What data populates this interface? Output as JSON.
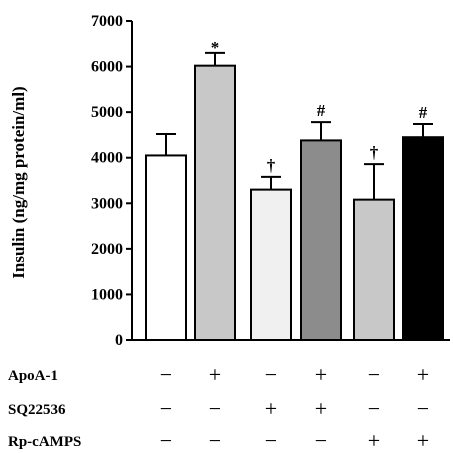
{
  "chart_data": {
    "type": "bar",
    "ylabel": "Insulin (ng/mg protein/ml)",
    "ylim": [
      0,
      7000
    ],
    "yticks": [
      0,
      1000,
      2000,
      3000,
      4000,
      5000,
      6000,
      7000
    ],
    "ytick_labels": [
      "0",
      "1000",
      "2000",
      "3000",
      "4000",
      "5000",
      "6000",
      "7000"
    ],
    "grid": false,
    "bars": [
      {
        "value": 4050,
        "error": 470,
        "fill": "#ffffff",
        "annotation": ""
      },
      {
        "value": 6020,
        "error": 280,
        "fill": "#c8c8c8",
        "annotation": "*"
      },
      {
        "value": 3300,
        "error": 280,
        "fill": "#f0f0f0",
        "annotation": "†"
      },
      {
        "value": 4380,
        "error": 400,
        "fill": "#8c8c8c",
        "annotation": "#"
      },
      {
        "value": 3080,
        "error": 780,
        "fill": "#c8c8c8",
        "annotation": "†"
      },
      {
        "value": 4450,
        "error": 290,
        "fill": "#000000",
        "annotation": "#"
      }
    ],
    "conditions": [
      {
        "label": "ApoA-1",
        "signs": [
          "−",
          "+",
          "−",
          "+",
          "−",
          "+"
        ]
      },
      {
        "label": "SQ22536",
        "signs": [
          "−",
          "−",
          "+",
          "+",
          "−",
          "−"
        ]
      },
      {
        "label": "Rp-cAMPS",
        "signs": [
          "−",
          "−",
          "−",
          "−",
          "+",
          "+"
        ]
      }
    ]
  }
}
